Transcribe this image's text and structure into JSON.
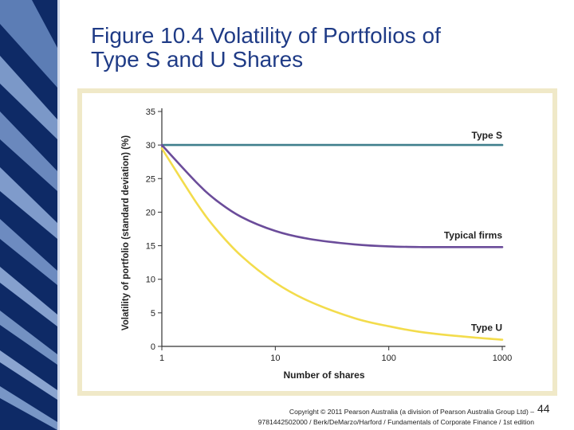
{
  "slide": {
    "title_line1": "Figure 10.4 Volatility of Portfolios of",
    "title_line2": "Type S and U Shares",
    "footer_line1": "Copyright © 2011 Pearson Australia (a division of Pearson Australia Group Ltd) –",
    "footer_line2": "9781442502000 / Berk/DeMarzo/Harford / Fundamentals of Corporate Finance / 1st edition",
    "page_number": "44"
  },
  "colors": {
    "title": "#1f3b86",
    "deco_dark": "#0e2a66",
    "deco_light": "#6f8fc0",
    "type_s": "#3f7f8c",
    "typical": "#6b4c9a",
    "type_u": "#f3dc4c",
    "frame": "#f0e9c8"
  },
  "chart_data": {
    "type": "line",
    "xlabel": "Number of shares",
    "ylabel": "Volatility of portfolio (standard deviation) (%)",
    "xscale": "log",
    "xlim": [
      1,
      1000
    ],
    "ylim": [
      0,
      35
    ],
    "x_ticks": [
      "1",
      "10",
      "100",
      "1000"
    ],
    "y_ticks": [
      "0",
      "5",
      "10",
      "15",
      "20",
      "25",
      "30",
      "35"
    ],
    "grid": false,
    "series": [
      {
        "name": "Type S",
        "x": [
          1,
          1000
        ],
        "y": [
          30,
          30
        ]
      },
      {
        "name": "Typical firms",
        "x": [
          1,
          2,
          3,
          5,
          10,
          20,
          50,
          100,
          200,
          500,
          1000
        ],
        "y": [
          30,
          24.5,
          21.8,
          19.3,
          17.2,
          16.0,
          15.2,
          14.9,
          14.8,
          14.8,
          14.8
        ]
      },
      {
        "name": "Type U",
        "x": [
          1,
          2,
          3,
          5,
          10,
          20,
          50,
          100,
          200,
          500,
          1000
        ],
        "y": [
          29.5,
          21.5,
          17.5,
          13.5,
          9.5,
          6.7,
          4.2,
          3.0,
          2.1,
          1.4,
          1.0
        ]
      }
    ]
  }
}
